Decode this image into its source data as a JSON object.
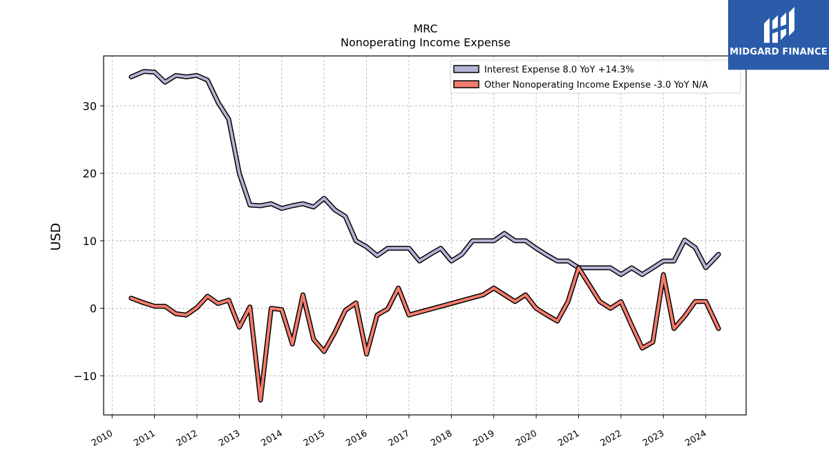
{
  "chart_data": {
    "type": "line",
    "title": "MRC",
    "subtitle": "Nonoperating Income Expense",
    "ylabel": "USD",
    "xlabel": "",
    "ylim": [
      -15.8,
      37.4
    ],
    "xlim": [
      2009.8,
      2024.95
    ],
    "yticks": [
      -10,
      0,
      10,
      20,
      30
    ],
    "xticks": [
      "2010",
      "2011",
      "2012",
      "2013",
      "2014",
      "2015",
      "2016",
      "2017",
      "2018",
      "2019",
      "2020",
      "2021",
      "2022",
      "2023",
      "2024"
    ],
    "grid": true,
    "legend_position": "top-right",
    "series": [
      {
        "name": "Interest Expense  8.0 YoY +14.3%",
        "color": "#b3b3d6",
        "x": [
          2010.45,
          2010.75,
          2011.0,
          2011.25,
          2011.5,
          2011.75,
          2012.0,
          2012.25,
          2012.5,
          2012.75,
          2013.0,
          2013.25,
          2013.5,
          2013.75,
          2014.0,
          2014.25,
          2014.5,
          2014.75,
          2015.0,
          2015.25,
          2015.5,
          2015.75,
          2016.0,
          2016.25,
          2016.5,
          2016.75,
          2017.0,
          2017.25,
          2017.5,
          2017.75,
          2018.0,
          2018.25,
          2018.5,
          2018.75,
          2019.0,
          2019.25,
          2019.5,
          2019.75,
          2020.0,
          2020.25,
          2020.5,
          2020.75,
          2021.0,
          2021.25,
          2021.5,
          2021.75,
          2022.0,
          2022.25,
          2022.5,
          2022.75,
          2023.0,
          2023.25,
          2023.5,
          2023.75,
          2024.0,
          2024.3
        ],
        "values": [
          34.3,
          35.1,
          35.0,
          33.5,
          34.5,
          34.3,
          34.5,
          33.8,
          30.5,
          28.0,
          20.0,
          15.3,
          15.2,
          15.5,
          14.8,
          15.2,
          15.5,
          15.0,
          16.3,
          14.6,
          13.6,
          10.0,
          9.1,
          7.8,
          8.9,
          8.9,
          8.9,
          7.0,
          8.0,
          8.9,
          7.0,
          8.0,
          10.0,
          10.0,
          10.0,
          11.1,
          10.0,
          10.0,
          8.9,
          7.9,
          7.0,
          7.0,
          6.0,
          6.0,
          6.0,
          6.0,
          5.0,
          6.0,
          5.0,
          6.0,
          7.0,
          7.0,
          10.1,
          9.0,
          6.0,
          8.0
        ]
      },
      {
        "name": "Other Nonoperating Income Expense  -3.0 YoY N/A",
        "color": "#f47c6c",
        "x": [
          2010.45,
          2010.75,
          2011.0,
          2011.25,
          2011.5,
          2011.75,
          2012.0,
          2012.25,
          2012.5,
          2012.75,
          2013.0,
          2013.25,
          2013.5,
          2013.75,
          2014.0,
          2014.25,
          2014.5,
          2014.75,
          2015.0,
          2015.25,
          2015.5,
          2015.75,
          2016.0,
          2016.25,
          2016.5,
          2016.75,
          2017.0,
          2018.75,
          2019.0,
          2019.25,
          2019.5,
          2019.75,
          2020.0,
          2020.25,
          2020.5,
          2020.75,
          2021.0,
          2021.25,
          2021.5,
          2021.75,
          2022.0,
          2022.25,
          2022.5,
          2022.75,
          2023.0,
          2023.25,
          2023.5,
          2023.75,
          2024.0,
          2024.3
        ],
        "values": [
          1.5,
          0.8,
          0.3,
          0.3,
          -0.8,
          -1.0,
          0.1,
          1.8,
          0.7,
          1.2,
          -2.8,
          0.2,
          -13.6,
          0.0,
          -0.2,
          -5.3,
          2.0,
          -4.6,
          -6.4,
          -3.6,
          -0.3,
          0.8,
          -6.8,
          -1.0,
          -0.1,
          3.0,
          -1.0,
          2.0,
          3.0,
          2.0,
          1.0,
          2.0,
          0.0,
          -1.0,
          -1.9,
          1.0,
          6.0,
          3.5,
          1.0,
          0.0,
          1.0,
          -2.5,
          -5.9,
          -5.0,
          5.0,
          -3.0,
          -1.2,
          1.0,
          1.0,
          -3.0
        ]
      }
    ]
  },
  "logo": {
    "text": "MIDGARD FINANCE",
    "background": "#2a5caa",
    "icon": "midgard-finance-logo-icon"
  }
}
